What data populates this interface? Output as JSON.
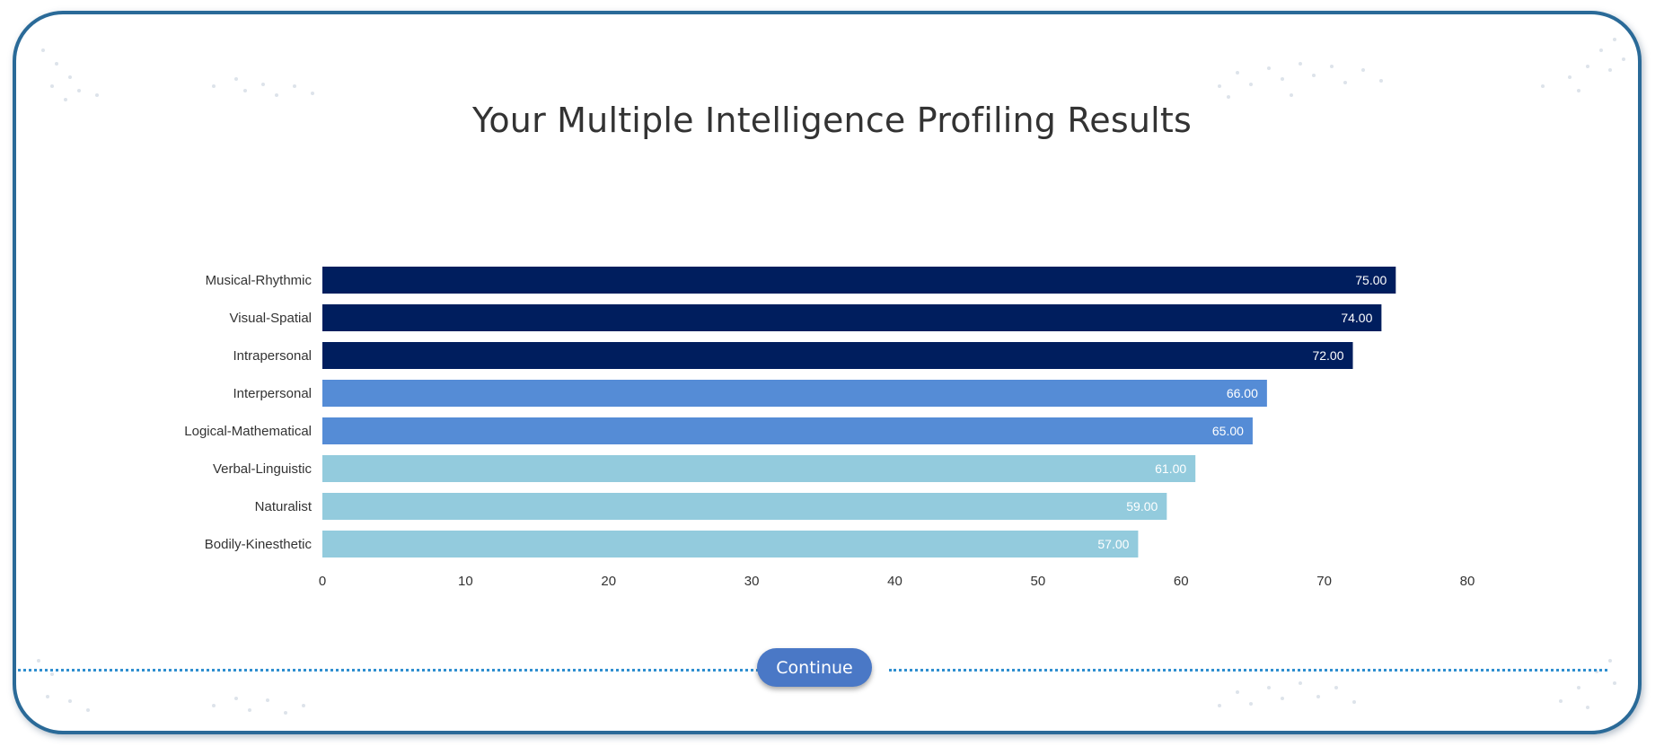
{
  "page": {
    "title": "Your Multiple Intelligence Profiling Results",
    "continue_label": "Continue"
  },
  "colors": {
    "frame_border": "#2a6a98",
    "high": "#001e5e",
    "mid": "#558cd6",
    "low": "#93cbdd",
    "button": "#4a78c6",
    "divider": "#2f8fd0"
  },
  "chart_data": {
    "type": "bar",
    "orientation": "horizontal",
    "title": "",
    "xlabel": "",
    "ylabel": "",
    "categories": [
      "Musical-Rhythmic",
      "Visual-Spatial",
      "Intrapersonal",
      "Interpersonal",
      "Logical-Mathematical",
      "Verbal-Linguistic",
      "Naturalist",
      "Bodily-Kinesthetic"
    ],
    "values": [
      75,
      74,
      72,
      66,
      65,
      61,
      59,
      57
    ],
    "value_labels": [
      "75.00",
      "74.00",
      "72.00",
      "66.00",
      "65.00",
      "61.00",
      "59.00",
      "57.00"
    ],
    "bar_colors": [
      "#001e5e",
      "#001e5e",
      "#001e5e",
      "#558cd6",
      "#558cd6",
      "#93cbdd",
      "#93cbdd",
      "#93cbdd"
    ],
    "xlim": [
      0,
      80
    ],
    "xticks": [
      "0",
      "10",
      "20",
      "30",
      "40",
      "50",
      "60",
      "70",
      "80"
    ],
    "grid": false,
    "legend": "none"
  }
}
